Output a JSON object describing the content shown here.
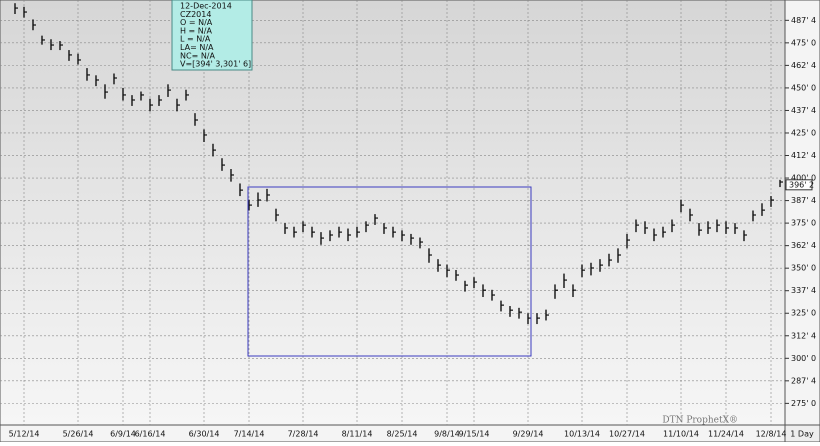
{
  "chart_data": {
    "type": "ohlc",
    "info_box": [
      "12-Dec-2014",
      "CZ2014",
      "O = N/A",
      "H = N/A",
      "L = N/A",
      "LA= N/A",
      "NC= N/A",
      "V=[394' 3,301' 6]"
    ],
    "watermark": "DTN ProphetX®",
    "period": "1 Day",
    "last_price": {
      "value": 396.25,
      "label": "396' 2"
    },
    "color": "#111111",
    "grid": true,
    "ylim": [
      263,
      496
    ],
    "yticks": [
      {
        "value": 275,
        "label": "275' 0"
      },
      {
        "value": 287.5,
        "label": "287' 4"
      },
      {
        "value": 300,
        "label": "300' 0"
      },
      {
        "value": 312.5,
        "label": "312' 4"
      },
      {
        "value": 325,
        "label": "325' 0"
      },
      {
        "value": 337.5,
        "label": "337' 4"
      },
      {
        "value": 350,
        "label": "350' 0"
      },
      {
        "value": 362.5,
        "label": "362' 4"
      },
      {
        "value": 375,
        "label": "375' 0"
      },
      {
        "value": 387.5,
        "label": "387' 4"
      },
      {
        "value": 400,
        "label": "400' 0"
      },
      {
        "value": 412.5,
        "label": "412' 4"
      },
      {
        "value": 425,
        "label": "425' 0"
      },
      {
        "value": 437.5,
        "label": "437' 4"
      },
      {
        "value": 450,
        "label": "450' 0"
      },
      {
        "value": 462.5,
        "label": "462' 4"
      },
      {
        "value": 475,
        "label": "475' 0"
      },
      {
        "value": 487.5,
        "label": "487' 4"
      }
    ],
    "categories": [
      null,
      "5/12/14",
      null,
      null,
      null,
      null,
      null,
      "5/26/14",
      null,
      null,
      null,
      null,
      "6/9/14",
      null,
      null,
      "6/16/14",
      null,
      null,
      null,
      null,
      null,
      "6/30/14",
      null,
      null,
      null,
      null,
      "7/14/14",
      null,
      null,
      null,
      null,
      null,
      "7/28/14",
      null,
      null,
      null,
      null,
      null,
      "8/11/14",
      null,
      null,
      null,
      null,
      "8/25/14",
      null,
      null,
      null,
      null,
      "9/8/14",
      null,
      null,
      "9/15/14",
      null,
      null,
      null,
      null,
      null,
      "9/29/14",
      null,
      null,
      null,
      null,
      null,
      "10/13/14",
      null,
      null,
      null,
      null,
      "10/27/14",
      null,
      null,
      null,
      null,
      null,
      "11/10/14",
      null,
      null,
      null,
      null,
      "11/24/14",
      null,
      null,
      null,
      null,
      "12/8/14",
      null
    ],
    "high": [
      497,
      495,
      488,
      479,
      477,
      476,
      471,
      469,
      461,
      457,
      452,
      458,
      450,
      446,
      448,
      444,
      446,
      452,
      444,
      449,
      436,
      427,
      419,
      411,
      405,
      397,
      388,
      392,
      394,
      383,
      375,
      373,
      376,
      373,
      370,
      371,
      373,
      372,
      373,
      376,
      380,
      375,
      373,
      371,
      369,
      367,
      361,
      355,
      352,
      349,
      343,
      345,
      341,
      338,
      332,
      329,
      328,
      325,
      325,
      327,
      341,
      347,
      341,
      352,
      353,
      355,
      358,
      361,
      369,
      377,
      376,
      372,
      373,
      377,
      388,
      383,
      375,
      376,
      377,
      376,
      375,
      371,
      382,
      386,
      390,
      399
    ],
    "low": [
      491,
      489,
      482,
      474,
      471,
      471,
      465,
      463,
      454,
      451,
      444,
      452,
      443,
      440,
      443,
      437,
      440,
      445,
      437,
      443,
      429,
      420,
      412,
      404,
      398,
      390,
      382,
      384,
      387,
      376,
      369,
      367,
      370,
      367,
      363,
      365,
      367,
      365,
      367,
      370,
      374,
      369,
      367,
      365,
      363,
      361,
      353,
      348,
      345,
      343,
      337,
      339,
      334,
      332,
      326,
      323,
      322,
      319,
      319,
      321,
      333,
      339,
      334,
      345,
      346,
      348,
      351,
      353,
      361,
      370,
      369,
      365,
      367,
      370,
      381,
      376,
      368,
      369,
      370,
      369,
      369,
      365,
      376,
      379,
      384,
      395
    ],
    "close": [
      494.3,
      492.1,
      484.9,
      476.6,
      473.8,
      473.8,
      468.3,
      465.5,
      457.2,
      454.4,
      447.7,
      455.5,
      446.1,
      443.3,
      446.1,
      440.5,
      443.3,
      448.8,
      440.5,
      446.1,
      432.2,
      423.9,
      415.5,
      407.2,
      401.7,
      393.3,
      385.0,
      387.8,
      390.6,
      379.5,
      372.3,
      370.0,
      373.9,
      370.0,
      366.7,
      368.4,
      370.0,
      368.4,
      370.0,
      373.9,
      377.8,
      372.3,
      370.0,
      368.4,
      366.7,
      364.5,
      357.3,
      351.7,
      348.9,
      346.2,
      340.6,
      342.3,
      337.8,
      335.1,
      329.5,
      326.7,
      325.6,
      322.3,
      322.3,
      324.0,
      337.8,
      343.4,
      337.8,
      348.9,
      350.1,
      351.7,
      354.5,
      357.3,
      365.6,
      373.9,
      372.3,
      368.4,
      370.0,
      373.9,
      385.0,
      379.5,
      371.1,
      372.3,
      373.9,
      372.3,
      372.3,
      368.4,
      379.5,
      382.2,
      387.8,
      397.8
    ]
  }
}
